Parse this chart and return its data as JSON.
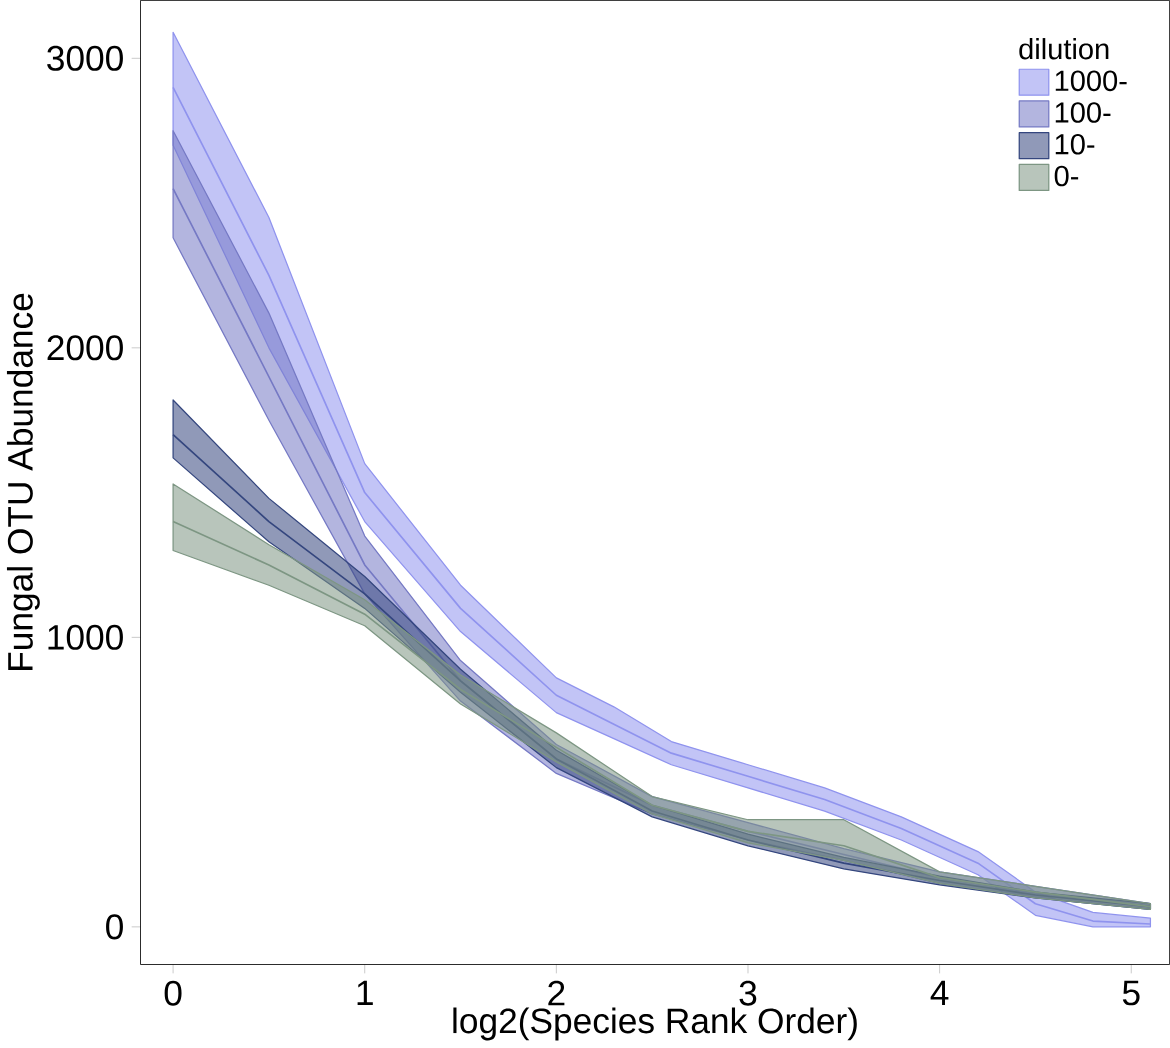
{
  "chart_data": {
    "type": "line",
    "xlabel": "log2(Species Rank Order)",
    "ylabel": "Fungal OTU Abundance",
    "legend_title": "dilution",
    "legend": "top right",
    "xlim": [
      -0.17,
      5.2
    ],
    "ylim": [
      -130,
      3200
    ],
    "xticks": [
      0,
      1,
      2,
      3,
      4,
      5
    ],
    "yticks": [
      0,
      1000,
      2000,
      3000
    ],
    "series": [
      {
        "name": "1000-",
        "color": "#8f93ee",
        "x": [
          0,
          0.5,
          1,
          1.5,
          2,
          2.3,
          2.6,
          3,
          3.4,
          3.8,
          4.2,
          4.5,
          4.8,
          5.1
        ],
        "values": [
          2900,
          2250,
          1500,
          1100,
          800,
          700,
          600,
          520,
          440,
          340,
          220,
          80,
          20,
          10
        ],
        "lower": [
          2700,
          2000,
          1400,
          1020,
          740,
          650,
          560,
          480,
          400,
          300,
          180,
          40,
          0,
          0
        ],
        "upper": [
          3090,
          2450,
          1600,
          1180,
          860,
          760,
          640,
          560,
          480,
          380,
          260,
          120,
          50,
          30
        ]
      },
      {
        "name": "100-",
        "color": "#7579c4",
        "x": [
          0,
          0.5,
          1,
          1.5,
          2,
          2.5,
          3,
          3.5,
          4,
          4.5,
          5.1
        ],
        "values": [
          2550,
          1900,
          1250,
          850,
          580,
          420,
          330,
          250,
          170,
          120,
          70
        ],
        "lower": [
          2380,
          1750,
          1150,
          780,
          530,
          390,
          300,
          230,
          150,
          100,
          60
        ],
        "upper": [
          2750,
          2120,
          1350,
          920,
          630,
          450,
          360,
          270,
          190,
          140,
          80
        ]
      },
      {
        "name": "10-",
        "color": "#34467e",
        "x": [
          0,
          0.5,
          1,
          1.5,
          2,
          2.5,
          3,
          3.5,
          4,
          4.5,
          5.1
        ],
        "values": [
          1700,
          1400,
          1150,
          850,
          580,
          400,
          300,
          220,
          160,
          110,
          70
        ],
        "lower": [
          1620,
          1330,
          1100,
          810,
          550,
          380,
          280,
          200,
          145,
          100,
          60
        ],
        "upper": [
          1820,
          1480,
          1210,
          890,
          610,
          420,
          320,
          240,
          175,
          120,
          80
        ]
      },
      {
        "name": "0-",
        "color": "#7d9683",
        "x": [
          0,
          0.5,
          1,
          1.5,
          2,
          2.5,
          3,
          3.5,
          4,
          4.5,
          5.1
        ],
        "values": [
          1400,
          1250,
          1080,
          820,
          620,
          420,
          330,
          280,
          170,
          120,
          70
        ],
        "lower": [
          1300,
          1180,
          1040,
          770,
          570,
          390,
          290,
          230,
          150,
          100,
          60
        ],
        "upper": [
          1530,
          1320,
          1130,
          870,
          670,
          450,
          370,
          370,
          190,
          140,
          80
        ]
      }
    ]
  }
}
